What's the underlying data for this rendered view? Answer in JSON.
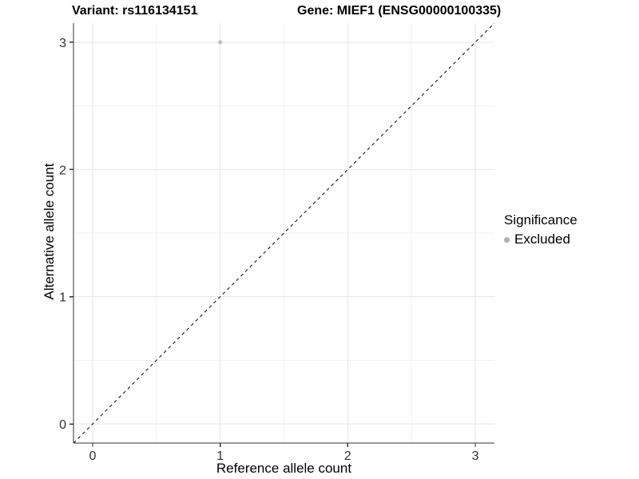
{
  "header": {
    "variant_title": "Variant: rs116134151",
    "gene_title": "Gene: MIEF1 (ENSG00000100335)"
  },
  "legend": {
    "title": "Significance",
    "items": [
      {
        "label": "Excluded",
        "color": "#b0b0b0"
      }
    ]
  },
  "colors": {
    "point": "#bdbdbd",
    "legend_dot": "#b0b0b0",
    "major_grid": "#e6e6e6",
    "minor_grid": "#f2f2f2",
    "axis_line": "#333333",
    "tick_label": "#303030",
    "reference_line": "#000000"
  },
  "chart_data": {
    "type": "scatter",
    "title": "Variant: rs116134151   Gene: MIEF1 (ENSG00000100335)",
    "xlabel": "Reference allele count",
    "ylabel": "Alternative allele count",
    "xticks": [
      0,
      1,
      2,
      3
    ],
    "yticks": [
      0,
      1,
      2,
      3
    ],
    "xtick_labels": [
      "0",
      "1",
      "2",
      "3"
    ],
    "ytick_labels": [
      "0",
      "1",
      "2",
      "3"
    ],
    "xlim": [
      -0.15,
      3.15
    ],
    "ylim": [
      -0.15,
      3.15
    ],
    "minor_step": 0.5,
    "grid": true,
    "legend_position": "right",
    "series": [
      {
        "name": "Excluded",
        "color": "#bdbdbd",
        "points": [
          {
            "x": 1,
            "y": 3
          }
        ]
      }
    ],
    "reference_line": {
      "equation": "y = x",
      "style": "dashed",
      "color": "#000000"
    }
  }
}
